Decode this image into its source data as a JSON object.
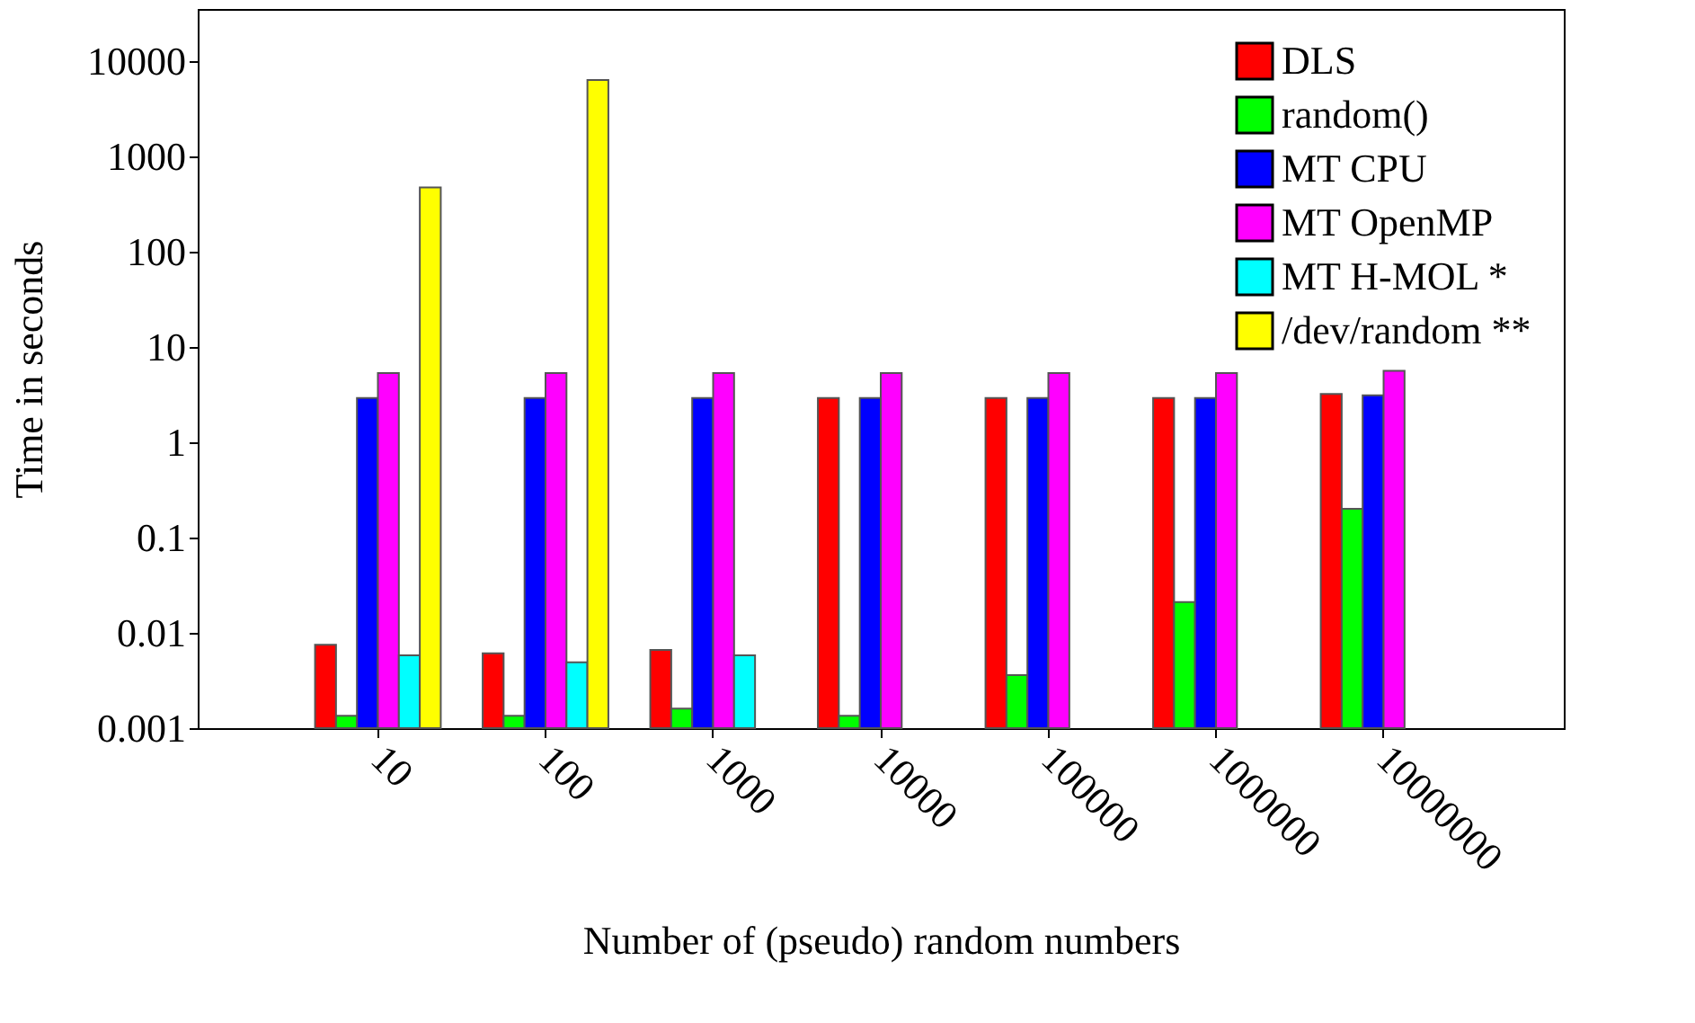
{
  "chart_data": {
    "type": "bar",
    "xlabel": "Number of (pseudo) random numbers",
    "ylabel": "Time in seconds",
    "categories": [
      "10",
      "100",
      "1000",
      "10000",
      "100000",
      "1000000",
      "10000000"
    ],
    "series": [
      {
        "name": "DLS",
        "color": "#ff0000",
        "values": [
          0.0075,
          0.0061,
          0.0066,
          2.9,
          2.9,
          2.9,
          3.2
        ]
      },
      {
        "name": "random()",
        "color": "#00ff00",
        "values": [
          0.00135,
          0.00135,
          0.0016,
          0.00135,
          0.0036,
          0.021,
          0.2
        ]
      },
      {
        "name": "MT CPU",
        "color": "#0000ff",
        "values": [
          2.9,
          2.9,
          2.9,
          2.9,
          2.9,
          2.9,
          3.1
        ]
      },
      {
        "name": "MT OpenMP",
        "color": "#ff00ff",
        "values": [
          5.3,
          5.3,
          5.3,
          5.3,
          5.3,
          5.3,
          5.6
        ]
      },
      {
        "name": "MT H-MOL *",
        "color": "#00ffff",
        "values": [
          0.0058,
          0.0049,
          0.0058,
          null,
          null,
          null,
          null
        ]
      },
      {
        "name": "/dev/random **",
        "color": "#ffff00",
        "values": [
          470,
          6300,
          null,
          null,
          null,
          null,
          null
        ]
      }
    ],
    "log": true,
    "ylim": [
      0.001,
      35000
    ],
    "yticks": [
      0.001,
      0.01,
      0.1,
      1,
      10,
      100,
      1000,
      10000
    ],
    "grid": false,
    "legend": "top right"
  }
}
